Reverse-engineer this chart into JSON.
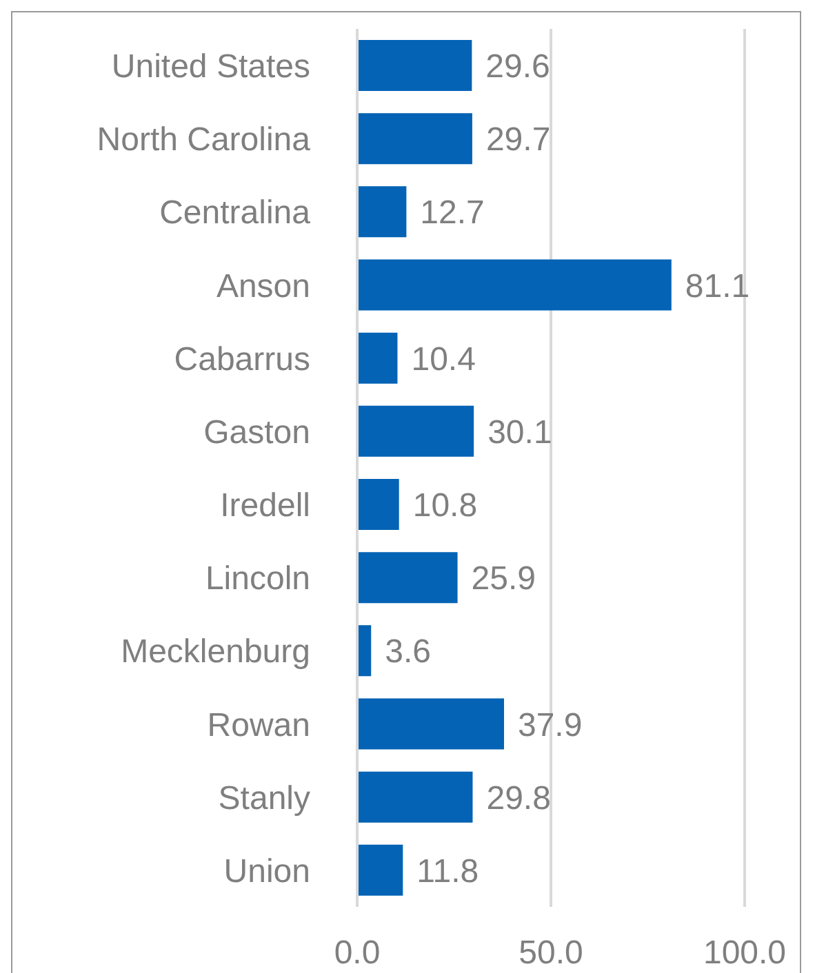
{
  "chart_data": {
    "type": "bar",
    "orientation": "horizontal",
    "categories": [
      "United States",
      "North Carolina",
      "Centralina",
      "Anson",
      "Cabarrus",
      "Gaston",
      "Iredell",
      "Lincoln",
      "Mecklenburg",
      "Rowan",
      "Stanly",
      "Union"
    ],
    "values": [
      29.6,
      29.7,
      12.7,
      81.1,
      10.4,
      30.1,
      10.8,
      25.9,
      3.6,
      37.9,
      29.8,
      11.8
    ],
    "color": "#0563b5",
    "xlim": [
      0,
      100
    ],
    "xticks": [
      {
        "value": 0,
        "label": "0.0"
      },
      {
        "value": 50,
        "label": "50.0"
      },
      {
        "value": 100,
        "label": "100.0"
      }
    ],
    "grid": "x",
    "data_labels": true,
    "legend": false
  }
}
